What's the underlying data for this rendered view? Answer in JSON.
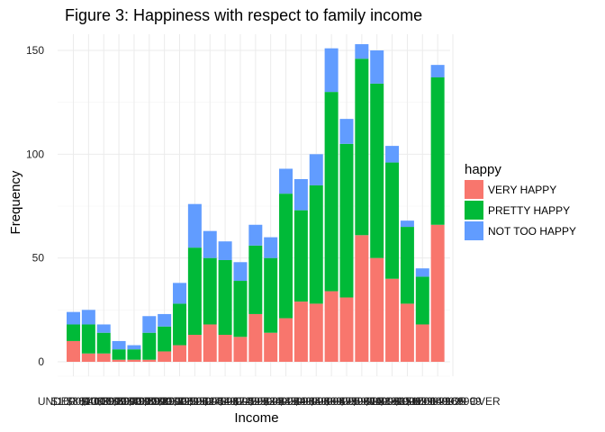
{
  "chart_data": {
    "type": "bar",
    "stacked": true,
    "title": "Figure 3: Happiness with respect to family income",
    "xlabel": "Income",
    "ylabel": "Frequency",
    "ylim": [
      0,
      160
    ],
    "yticks": [
      0,
      50,
      100,
      150
    ],
    "grid": true,
    "legend": {
      "title": "happy",
      "position": "right"
    },
    "categories": [
      "UNDER $1000",
      "$1000 TO 2999",
      "$3000 TO 3999",
      "$4000 TO 4999",
      "$5000 TO 5999",
      "$6000 TO 6999",
      "$7000 TO 7999",
      "$8000 TO 9999",
      "$10000 - 12499",
      "$12500 - 14999",
      "$15000 - 17499",
      "$17500 - 19999",
      "$20000 - 22499",
      "$22500 - 24999",
      "$25000 - 29999",
      "$30000 - 34999",
      "$35000 - 39999",
      "$40000 - 49999",
      "$50000 - 59999",
      "$60000 - 74999",
      "$75000 - 89999",
      "$90000 - 109999",
      "$110000 - 129999",
      "$130000 - 149999",
      "$150000 - 169999",
      "$170000 OR OVER"
    ],
    "series": [
      {
        "name": "VERY HAPPY",
        "color": "#F8766D",
        "values": [
          10,
          4,
          4,
          1,
          1,
          1,
          5,
          8,
          13,
          18,
          13,
          12,
          23,
          14,
          21,
          29,
          28,
          34,
          31,
          61,
          50,
          40,
          28,
          18,
          66,
          0
        ]
      },
      {
        "name": "PRETTY HAPPY",
        "color": "#00BA38",
        "values": [
          8,
          14,
          10,
          5,
          5,
          13,
          12,
          20,
          42,
          32,
          36,
          27,
          33,
          36,
          60,
          44,
          57,
          96,
          74,
          85,
          84,
          56,
          37,
          23,
          71,
          0
        ]
      },
      {
        "name": "NOT TOO HAPPY",
        "color": "#619CFF",
        "values": [
          6,
          7,
          4,
          4,
          2,
          8,
          6,
          10,
          21,
          13,
          9,
          9,
          10,
          10,
          12,
          15,
          15,
          21,
          12,
          7,
          16,
          8,
          3,
          4,
          6,
          0
        ]
      }
    ]
  }
}
